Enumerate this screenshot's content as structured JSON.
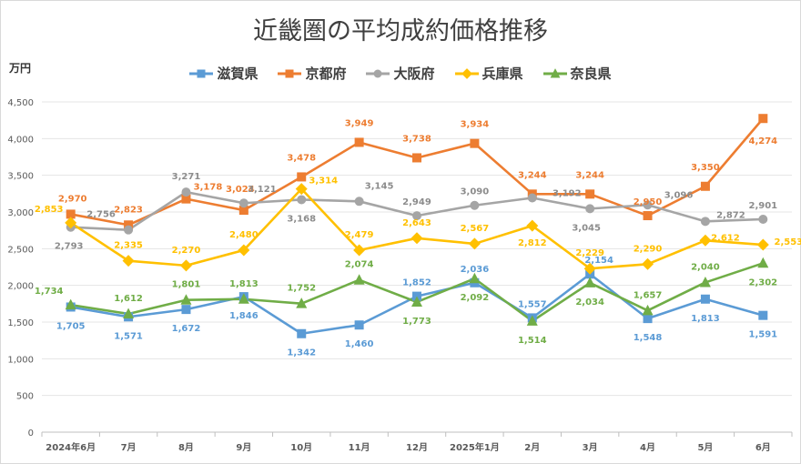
{
  "chart_data": {
    "type": "line",
    "title": "近畿圏の平均成約価格推移",
    "ylabel": "万円",
    "xlabel": "",
    "ylim": [
      0,
      4500
    ],
    "ytick_step": 500,
    "grid": true,
    "legend_position": "top",
    "categories": [
      "2024年6月",
      "7月",
      "8月",
      "9月",
      "10月",
      "11月",
      "12月",
      "2025年1月",
      "2月",
      "3月",
      "4月",
      "5月",
      "6月"
    ],
    "ytick_labels": [
      "0",
      "500",
      "1,000",
      "1,500",
      "2,000",
      "2,500",
      "3,000",
      "3,500",
      "4,000",
      "4,500"
    ],
    "series": [
      {
        "name": "滋賀県",
        "color": "#5b9bd5",
        "marker": "square",
        "values": [
          1705,
          1571,
          1672,
          1846,
          1342,
          1460,
          1852,
          2036,
          1557,
          2154,
          1548,
          1813,
          1591
        ],
        "labels": [
          "1,705",
          "1,571",
          "1,672",
          "1,846",
          "1,342",
          "1,460",
          "1,852",
          "2,036",
          "1,557",
          "2,154",
          "1,548",
          "1,813",
          "1,591"
        ]
      },
      {
        "name": "京都府",
        "color": "#ed7d31",
        "marker": "square",
        "values": [
          2970,
          2823,
          3178,
          3024,
          3478,
          3949,
          3738,
          3934,
          3244,
          3244,
          2950,
          3350,
          4274
        ],
        "labels": [
          "2,970",
          "2,823",
          "3,178",
          "3,024",
          "3,478",
          "3,949",
          "3,738",
          "3,934",
          "3,244",
          "3,244",
          "2,950",
          "3,350",
          "4,274"
        ]
      },
      {
        "name": "大阪府",
        "color": "#a5a5a5",
        "marker": "circle",
        "values": [
          2793,
          2756,
          3271,
          3121,
          3168,
          3145,
          2949,
          3090,
          3192,
          3045,
          3096,
          2872,
          2901
        ],
        "labels": [
          "2,793",
          "2,756",
          "3,271",
          "3,121",
          "3,168",
          "3,145",
          "2,949",
          "3,090",
          "3,192",
          "3,045",
          "3,096",
          "2,872",
          "2,901"
        ]
      },
      {
        "name": "兵庫県",
        "color": "#ffc000",
        "marker": "diamond",
        "values": [
          2853,
          2335,
          2270,
          2480,
          3314,
          2479,
          2643,
          2567,
          2812,
          2229,
          2290,
          2612,
          2553
        ],
        "labels": [
          "2,853",
          "2,335",
          "2,270",
          "2,480",
          "3,314",
          "2,479",
          "2,643",
          "2,567",
          "2,812",
          "2,229",
          "2,290",
          "2,612",
          "2,553"
        ]
      },
      {
        "name": "奈良県",
        "color": "#70ad47",
        "marker": "triangle",
        "values": [
          1734,
          1612,
          1801,
          1813,
          1752,
          2074,
          1773,
          2092,
          1514,
          2034,
          1657,
          2040,
          2302
        ],
        "labels": [
          "1,734",
          "1,612",
          "1,801",
          "1,813",
          "1,752",
          "2,074",
          "1,773",
          "2,092",
          "1,514",
          "2,034",
          "1,657",
          "2,040",
          "2,302"
        ]
      }
    ]
  }
}
